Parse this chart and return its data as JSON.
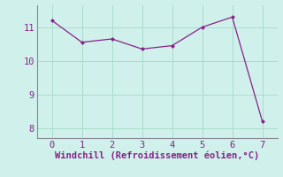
{
  "x": [
    0,
    1,
    2,
    3,
    4,
    5,
    6,
    7
  ],
  "y": [
    11.2,
    10.55,
    10.65,
    10.35,
    10.45,
    11.0,
    11.3,
    8.2
  ],
  "line_color": "#882288",
  "marker": "D",
  "marker_size": 2,
  "bg_color": "#cff0eb",
  "xlabel": "Windchill (Refroidissement éolien,°C)",
  "xlabel_color": "#882288",
  "xlim": [
    -0.5,
    7.5
  ],
  "ylim": [
    7.7,
    11.65
  ],
  "yticks": [
    8,
    9,
    10,
    11
  ],
  "xticks": [
    0,
    1,
    2,
    3,
    4,
    5,
    6,
    7
  ],
  "grid_color": "#aaddcc",
  "axis_color": "#888899",
  "tick_color": "#882288",
  "label_fontsize": 7.5,
  "tick_fontsize": 7.5,
  "linewidth": 0.9
}
